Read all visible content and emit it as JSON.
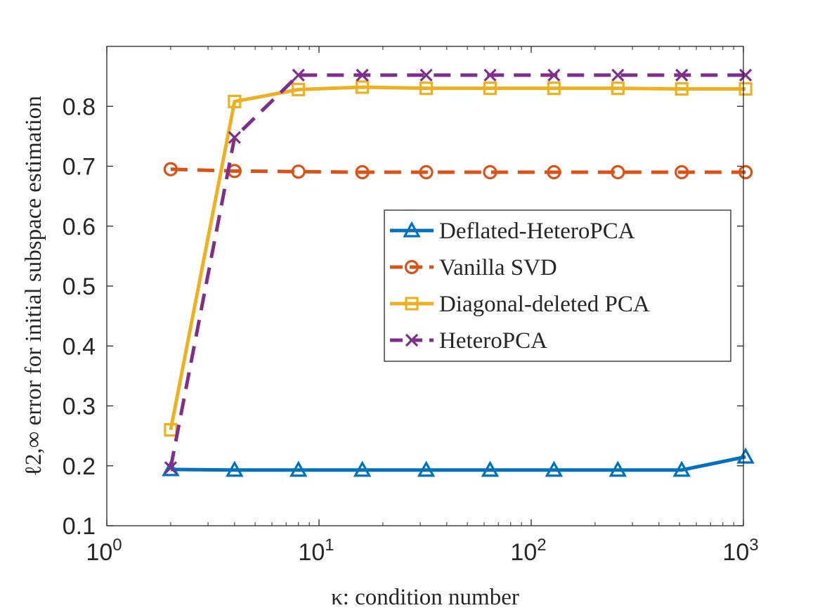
{
  "chart_data": {
    "type": "line",
    "xscale": "log",
    "xlabel": "κ: condition number",
    "ylabel": "ℓ2,∞ error for initial subspace estimation",
    "xlim": [
      1,
      1000
    ],
    "ylim": [
      0.1,
      0.9
    ],
    "xticks": [
      {
        "value": 1,
        "base": "10",
        "exp": "0"
      },
      {
        "value": 10,
        "base": "10",
        "exp": "1"
      },
      {
        "value": 100,
        "base": "10",
        "exp": "2"
      },
      {
        "value": 1000,
        "base": "10",
        "exp": "3"
      }
    ],
    "yticks": [
      0.1,
      0.2,
      0.3,
      0.4,
      0.5,
      0.6,
      0.7,
      0.8
    ],
    "legend_position": "center-right",
    "series": [
      {
        "name": "Deflated-HeteroPCA",
        "color": "#0072BD",
        "dash": "solid",
        "marker": "triangle",
        "x": [
          2,
          4,
          8,
          16,
          32,
          64,
          128,
          256,
          512,
          1024
        ],
        "values": [
          0.194,
          0.193,
          0.193,
          0.193,
          0.193,
          0.193,
          0.193,
          0.193,
          0.193,
          0.215
        ]
      },
      {
        "name": "Vanilla SVD",
        "color": "#D95319",
        "dash": "dashed",
        "marker": "circle",
        "x": [
          2,
          4,
          8,
          16,
          32,
          64,
          128,
          256,
          512,
          1024
        ],
        "values": [
          0.695,
          0.692,
          0.691,
          0.69,
          0.69,
          0.69,
          0.69,
          0.69,
          0.69,
          0.69
        ]
      },
      {
        "name": "Diagonal-deleted PCA",
        "color": "#EDB120",
        "dash": "solid",
        "marker": "square",
        "x": [
          2,
          4,
          8,
          16,
          32,
          64,
          128,
          256,
          512,
          1024
        ],
        "values": [
          0.26,
          0.808,
          0.828,
          0.832,
          0.83,
          0.83,
          0.83,
          0.83,
          0.829,
          0.829
        ]
      },
      {
        "name": "HeteroPCA",
        "color": "#7E2F8E",
        "dash": "dashed",
        "marker": "x",
        "x": [
          2,
          4,
          8,
          16,
          32,
          64,
          128,
          256,
          512,
          1024
        ],
        "values": [
          0.197,
          0.748,
          0.852,
          0.852,
          0.852,
          0.852,
          0.852,
          0.852,
          0.852,
          0.852
        ]
      }
    ]
  }
}
